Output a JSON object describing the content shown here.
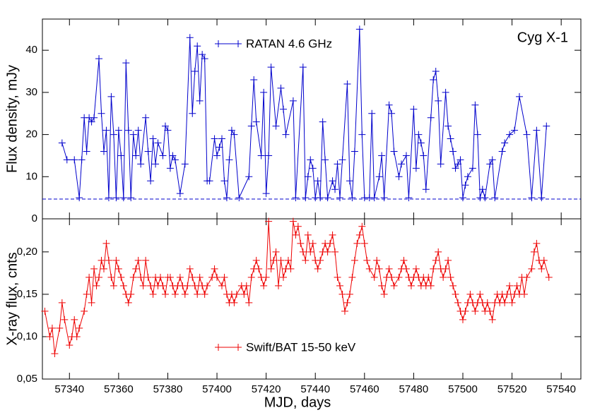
{
  "chart_data": [
    {
      "type": "line",
      "ylabel": "Flux density, mJy",
      "annotation": "Cyg X-1",
      "annotation_color": "#ee0000",
      "xlim": [
        57329,
        57548
      ],
      "xticks": [
        57340,
        57360,
        57380,
        57400,
        57420,
        57440,
        57460,
        57480,
        57500,
        57520,
        57540
      ],
      "xticklabels": false,
      "ylim": [
        0,
        47.4
      ],
      "yticks": [
        0,
        10,
        20,
        30,
        40
      ],
      "hline": 4.7,
      "legend": "upper center",
      "x": [
        57337,
        57339,
        57342,
        57344,
        57345,
        57346,
        57347,
        57348,
        57349,
        57350,
        57352,
        57353,
        57354,
        57355,
        57356,
        57357,
        57358,
        57359,
        57360,
        57361,
        57362,
        57363,
        57364,
        57365,
        57366,
        57367,
        57368,
        57369,
        57371,
        57372,
        57373,
        57374,
        57375,
        57376,
        57378,
        57379,
        57380,
        57381,
        57382,
        57383,
        57385,
        57387,
        57389,
        57390,
        57391,
        57392,
        57393,
        57394,
        57395,
        57396,
        57397,
        57399,
        57400,
        57401,
        57402,
        57403,
        57404,
        57405,
        57406,
        57407,
        57409,
        57413,
        57414,
        57415,
        57416,
        57418,
        57419,
        57420,
        57421,
        57422,
        57424,
        57426,
        57427,
        57428,
        57431,
        57432,
        57435,
        57436,
        57437,
        57438,
        57439,
        57440,
        57441,
        57442,
        57443,
        57444,
        57445,
        57447,
        57448,
        57449,
        57450,
        57451,
        57453,
        57454,
        57455,
        57456,
        57458,
        57459,
        57460,
        57462,
        57463,
        57464,
        57466,
        57467,
        57468,
        57470,
        57471,
        57472,
        57474,
        57475,
        57477,
        57478,
        57480,
        57481,
        57482,
        57483,
        57484,
        57485,
        57487,
        57488,
        57489,
        57490,
        57491,
        57493,
        57494,
        57495,
        57496,
        57497,
        57498,
        57499,
        57500,
        57501,
        57502,
        57504,
        57505,
        57506,
        57507,
        57508,
        57509,
        57511,
        57512,
        57513,
        57516,
        57517,
        57519,
        57521,
        57523,
        57526,
        57528,
        57530,
        57532,
        57534
      ],
      "series": [
        {
          "name": "RATAN 4.6 GHz",
          "color": "#0000cc",
          "values": [
            18,
            14,
            14,
            5,
            14,
            24,
            16,
            24,
            23,
            24,
            38,
            25,
            16,
            21,
            5,
            29,
            20,
            5,
            21,
            15,
            5,
            37,
            21,
            5,
            20,
            15,
            21,
            13,
            24,
            16,
            9,
            19,
            13,
            18,
            15,
            22,
            21,
            12,
            15,
            14,
            6,
            13,
            43,
            25,
            35,
            41,
            28,
            39,
            38,
            9,
            9,
            19,
            15,
            17,
            19,
            9,
            5,
            14,
            21,
            20,
            5,
            10,
            22,
            33,
            23,
            15,
            30,
            6,
            15,
            36,
            22,
            31,
            26,
            20,
            28,
            5,
            36,
            5,
            10,
            14,
            12,
            5,
            9,
            5,
            23,
            14,
            5,
            9,
            7,
            13,
            5,
            14,
            32,
            9,
            5,
            16,
            45,
            20,
            5,
            5,
            25,
            5,
            10,
            15,
            5,
            27,
            25,
            16,
            10,
            13,
            15,
            5,
            26,
            12,
            20,
            18,
            15,
            7,
            24,
            33,
            35,
            28,
            13,
            30,
            22,
            19,
            16,
            12,
            13,
            14,
            5,
            8,
            10,
            12,
            27,
            20,
            5,
            7,
            5,
            13,
            14,
            5,
            16,
            18,
            20,
            21,
            29,
            20,
            5,
            21,
            5,
            22
          ]
        }
      ]
    },
    {
      "type": "line",
      "xlabel": "MJD, days",
      "ylabel": "X-ray flux,  cnts",
      "xlim": [
        57329,
        57548
      ],
      "xticks": [
        57340,
        57360,
        57380,
        57400,
        57420,
        57440,
        57460,
        57480,
        57500,
        57520,
        57540
      ],
      "ylim": [
        0.05,
        0.239
      ],
      "yticks": [
        {
          "value": 0.05,
          "label": "0,05"
        },
        {
          "value": 0.1,
          "label": "0,10"
        },
        {
          "value": 0.15,
          "label": "0,15"
        },
        {
          "value": 0.2,
          "label": "0,20"
        }
      ],
      "legend": "lower center",
      "x": [
        57330,
        57332,
        57333,
        57334,
        57336,
        57337,
        57338,
        57340,
        57341,
        57342,
        57343,
        57344,
        57346,
        57347,
        57348,
        57349,
        57350,
        57351,
        57352,
        57353,
        57354,
        57355,
        57356,
        57357,
        57358,
        57359,
        57360,
        57361,
        57362,
        57363,
        57364,
        57365,
        57366,
        57367,
        57368,
        57369,
        57370,
        57371,
        57372,
        57373,
        57374,
        57375,
        57376,
        57377,
        57378,
        57379,
        57380,
        57381,
        57382,
        57383,
        57384,
        57385,
        57386,
        57387,
        57388,
        57389,
        57390,
        57391,
        57392,
        57393,
        57394,
        57395,
        57396,
        57398,
        57399,
        57400,
        57402,
        57403,
        57404,
        57405,
        57406,
        57407,
        57408,
        57410,
        57411,
        57412,
        57413,
        57414,
        57415,
        57416,
        57417,
        57418,
        57419,
        57420,
        57421,
        57422,
        57423,
        57424,
        57425,
        57426,
        57427,
        57428,
        57429,
        57430,
        57431,
        57432,
        57433,
        57434,
        57435,
        57436,
        57437,
        57438,
        57439,
        57440,
        57441,
        57442,
        57443,
        57444,
        57445,
        57446,
        57447,
        57448,
        57449,
        57450,
        57451,
        57452,
        57453,
        57454,
        57455,
        57456,
        57457,
        57458,
        57459,
        57460,
        57461,
        57462,
        57464,
        57465,
        57466,
        57467,
        57468,
        57469,
        57470,
        57471,
        57472,
        57474,
        57475,
        57476,
        57477,
        57478,
        57479,
        57480,
        57481,
        57482,
        57483,
        57484,
        57485,
        57486,
        57487,
        57488,
        57489,
        57490,
        57491,
        57492,
        57493,
        57494,
        57495,
        57496,
        57497,
        57498,
        57499,
        57500,
        57501,
        57502,
        57503,
        57504,
        57505,
        57506,
        57507,
        57508,
        57509,
        57510,
        57511,
        57512,
        57513,
        57514,
        57515,
        57516,
        57517,
        57518,
        57519,
        57520,
        57521,
        57522,
        57523,
        57524,
        57525,
        57526,
        57528,
        57529,
        57530,
        57531,
        57532,
        57533,
        57535
      ],
      "series": [
        {
          "name": "Swift/BAT 15-50 keV",
          "color": "#ee0000",
          "values": [
            0.13,
            0.1,
            0.11,
            0.08,
            0.11,
            0.14,
            0.12,
            0.09,
            0.1,
            0.12,
            0.1,
            0.11,
            0.13,
            0.15,
            0.17,
            0.14,
            0.18,
            0.16,
            0.17,
            0.19,
            0.18,
            0.21,
            0.19,
            0.17,
            0.16,
            0.19,
            0.18,
            0.17,
            0.16,
            0.15,
            0.14,
            0.15,
            0.17,
            0.18,
            0.19,
            0.17,
            0.16,
            0.19,
            0.17,
            0.16,
            0.15,
            0.17,
            0.16,
            0.17,
            0.16,
            0.15,
            0.17,
            0.17,
            0.16,
            0.15,
            0.16,
            0.17,
            0.16,
            0.15,
            0.16,
            0.18,
            0.17,
            0.16,
            0.15,
            0.17,
            0.16,
            0.15,
            0.16,
            0.17,
            0.18,
            0.17,
            0.16,
            0.17,
            0.15,
            0.14,
            0.15,
            0.14,
            0.15,
            0.16,
            0.15,
            0.16,
            0.14,
            0.17,
            0.18,
            0.19,
            0.18,
            0.17,
            0.16,
            0.17,
            0.236,
            0.18,
            0.19,
            0.2,
            0.16,
            0.19,
            0.17,
            0.18,
            0.19,
            0.18,
            0.236,
            0.22,
            0.23,
            0.21,
            0.2,
            0.19,
            0.22,
            0.2,
            0.21,
            0.19,
            0.18,
            0.19,
            0.2,
            0.21,
            0.2,
            0.21,
            0.22,
            0.2,
            0.17,
            0.16,
            0.15,
            0.13,
            0.14,
            0.15,
            0.17,
            0.19,
            0.21,
            0.22,
            0.23,
            0.21,
            0.19,
            0.18,
            0.17,
            0.19,
            0.18,
            0.16,
            0.15,
            0.17,
            0.18,
            0.17,
            0.16,
            0.17,
            0.18,
            0.19,
            0.18,
            0.17,
            0.16,
            0.17,
            0.18,
            0.17,
            0.16,
            0.17,
            0.16,
            0.17,
            0.16,
            0.18,
            0.19,
            0.2,
            0.18,
            0.17,
            0.18,
            0.19,
            0.17,
            0.16,
            0.15,
            0.14,
            0.13,
            0.12,
            0.13,
            0.14,
            0.15,
            0.14,
            0.13,
            0.14,
            0.15,
            0.14,
            0.13,
            0.14,
            0.13,
            0.12,
            0.14,
            0.15,
            0.14,
            0.15,
            0.14,
            0.15,
            0.16,
            0.14,
            0.15,
            0.16,
            0.15,
            0.17,
            0.15,
            0.17,
            0.18,
            0.2,
            0.21,
            0.19,
            0.18,
            0.19,
            0.17
          ]
        }
      ]
    }
  ]
}
